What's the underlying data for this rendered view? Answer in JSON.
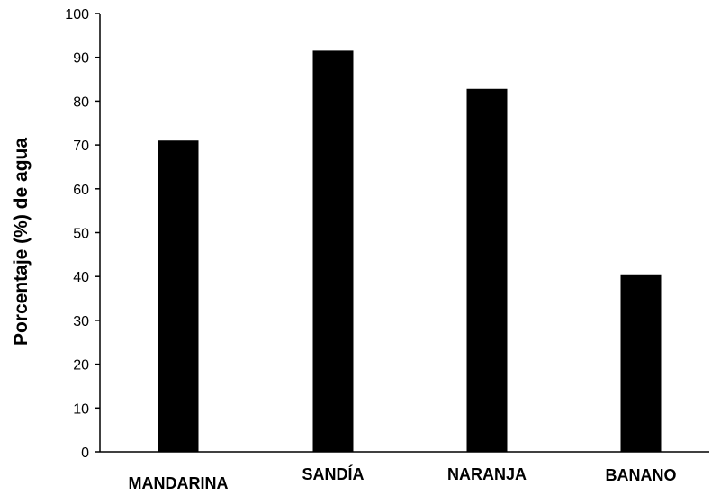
{
  "chart_data": {
    "type": "bar",
    "title": "",
    "xlabel": "",
    "ylabel": "Porcentaje (%) de agua",
    "categories": [
      "MANDARINA",
      "SANDÍA",
      "NARANJA",
      "BANANO"
    ],
    "values": [
      71,
      91.5,
      82.8,
      40.5
    ],
    "ylim": [
      0,
      100
    ],
    "yticks": [
      0,
      10,
      20,
      30,
      40,
      50,
      60,
      70,
      80,
      90,
      100
    ],
    "grid": false,
    "legend": "none",
    "bar_color": "#000000",
    "axis_color": "#000000"
  }
}
